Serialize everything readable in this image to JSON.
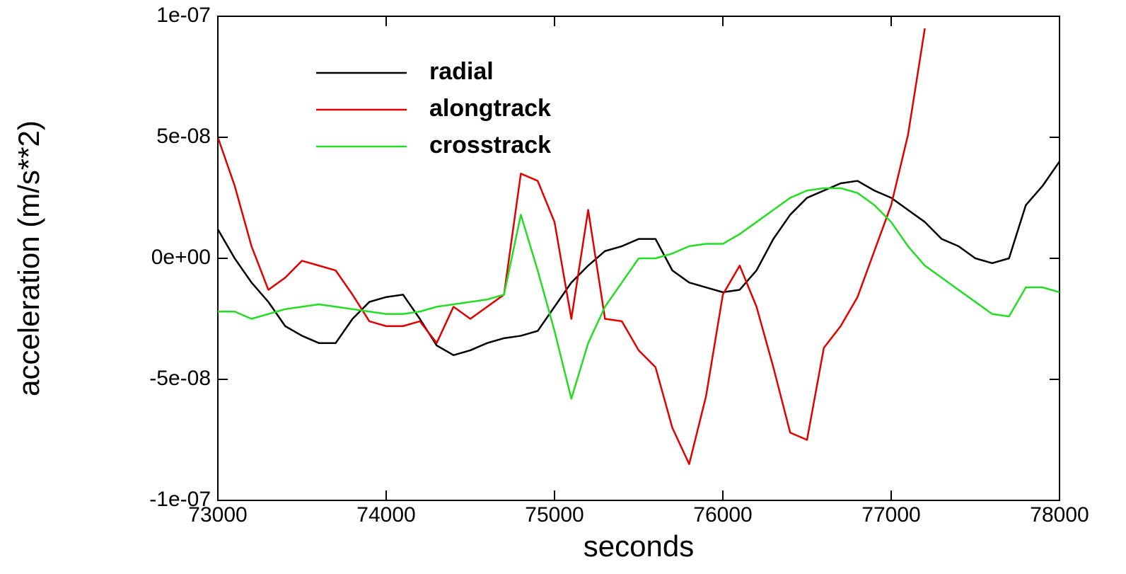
{
  "chart_data": {
    "type": "line",
    "xlabel": "seconds",
    "ylabel": "acceleration (m/s**2)",
    "x": [
      73000,
      73100,
      73200,
      73300,
      73400,
      73500,
      73600,
      73700,
      73800,
      73900,
      74000,
      74100,
      74200,
      74300,
      74400,
      74500,
      74600,
      74700,
      74800,
      74900,
      75000,
      75100,
      75200,
      75300,
      75400,
      75500,
      75600,
      75700,
      75800,
      75900,
      76000,
      76100,
      76200,
      76300,
      76400,
      76500,
      76600,
      76700,
      76800,
      76900,
      77000,
      77100,
      77200,
      77300,
      77400,
      77500,
      77600,
      77700,
      77800,
      77900,
      78000
    ],
    "series": [
      {
        "name": "radial",
        "color": "#000000",
        "values": [
          1.2e-08,
          0,
          -1e-08,
          -1.8e-08,
          -2.8e-08,
          -3.2e-08,
          -3.5e-08,
          -3.5e-08,
          -2.5e-08,
          -1.8e-08,
          -1.6e-08,
          -1.5e-08,
          -2.5e-08,
          -3.6e-08,
          -4e-08,
          -3.8e-08,
          -3.5e-08,
          -3.3e-08,
          -3.2e-08,
          -3e-08,
          -2e-08,
          -1e-08,
          -3e-09,
          3e-09,
          5e-09,
          8e-09,
          8e-09,
          -5e-09,
          -1e-08,
          -1.2e-08,
          -1.4e-08,
          -1.3e-08,
          -5e-09,
          8e-09,
          1.8e-08,
          2.5e-08,
          2.8e-08,
          3.1e-08,
          3.2e-08,
          2.8e-08,
          2.5e-08,
          2e-08,
          1.5e-08,
          8e-09,
          5e-09,
          0,
          -2e-09,
          0,
          2.2e-08,
          3e-08,
          4e-08
        ]
      },
      {
        "name": "alongtrack",
        "color": "#e00000",
        "values": [
          5e-08,
          3e-08,
          5e-09,
          -1.3e-08,
          -8e-09,
          -1e-09,
          -3e-09,
          -5e-09,
          -1.5e-08,
          -2.6e-08,
          -2.8e-08,
          -2.8e-08,
          -2.6e-08,
          -3.5e-08,
          -2e-08,
          -2.5e-08,
          -2e-08,
          -1.5e-08,
          3.5e-08,
          3.2e-08,
          1.5e-08,
          -2.5e-08,
          2e-08,
          -2.5e-08,
          -2.6e-08,
          -3.8e-08,
          -4.5e-08,
          -7e-08,
          -8.5e-08,
          -5.7e-08,
          -1.5e-08,
          -3e-09,
          -2e-08,
          -4.5e-08,
          -7.2e-08,
          -7.5e-08,
          -3.7e-08,
          -2.8e-08,
          -1.6e-08,
          3e-09,
          2.2e-08,
          5.1e-08,
          9.5e-08,
          null,
          null,
          null,
          null,
          null,
          null,
          null,
          null
        ]
      },
      {
        "name": "crosstrack",
        "color": "#22dd22",
        "values": [
          -2.2e-08,
          -2.2e-08,
          -2.5e-08,
          -2.3e-08,
          -2.1e-08,
          -2e-08,
          -1.9e-08,
          -2e-08,
          -2.1e-08,
          -2.2e-08,
          -2.3e-08,
          -2.3e-08,
          -2.2e-08,
          -2e-08,
          -1.9e-08,
          -1.8e-08,
          -1.7e-08,
          -1.5e-08,
          1.8e-08,
          -5e-09,
          -3e-08,
          -5.8e-08,
          -3.5e-08,
          -2e-08,
          -1e-08,
          0,
          0,
          2e-09,
          5e-09,
          6e-09,
          6e-09,
          1e-08,
          1.5e-08,
          2e-08,
          2.5e-08,
          2.8e-08,
          2.9e-08,
          2.9e-08,
          2.7e-08,
          2.2e-08,
          1.5e-08,
          5e-09,
          -3e-09,
          -8e-09,
          -1.3e-08,
          -1.8e-08,
          -2.3e-08,
          -2.4e-08,
          -1.2e-08,
          -1.2e-08,
          -1.4e-08
        ]
      }
    ],
    "xlim": [
      73000,
      78000
    ],
    "xticks": [
      73000,
      74000,
      75000,
      76000,
      77000,
      78000
    ],
    "ylim": [
      -1e-07,
      1e-07
    ],
    "yticks": [
      {
        "value": -1e-07,
        "label": "-1e-07"
      },
      {
        "value": -5e-08,
        "label": "-5e-08"
      },
      {
        "value": 0,
        "label": "0e+00"
      },
      {
        "value": 5e-08,
        "label": "5e-08"
      },
      {
        "value": 1e-07,
        "label": "1e-07"
      }
    ],
    "legend": "upper-left"
  }
}
